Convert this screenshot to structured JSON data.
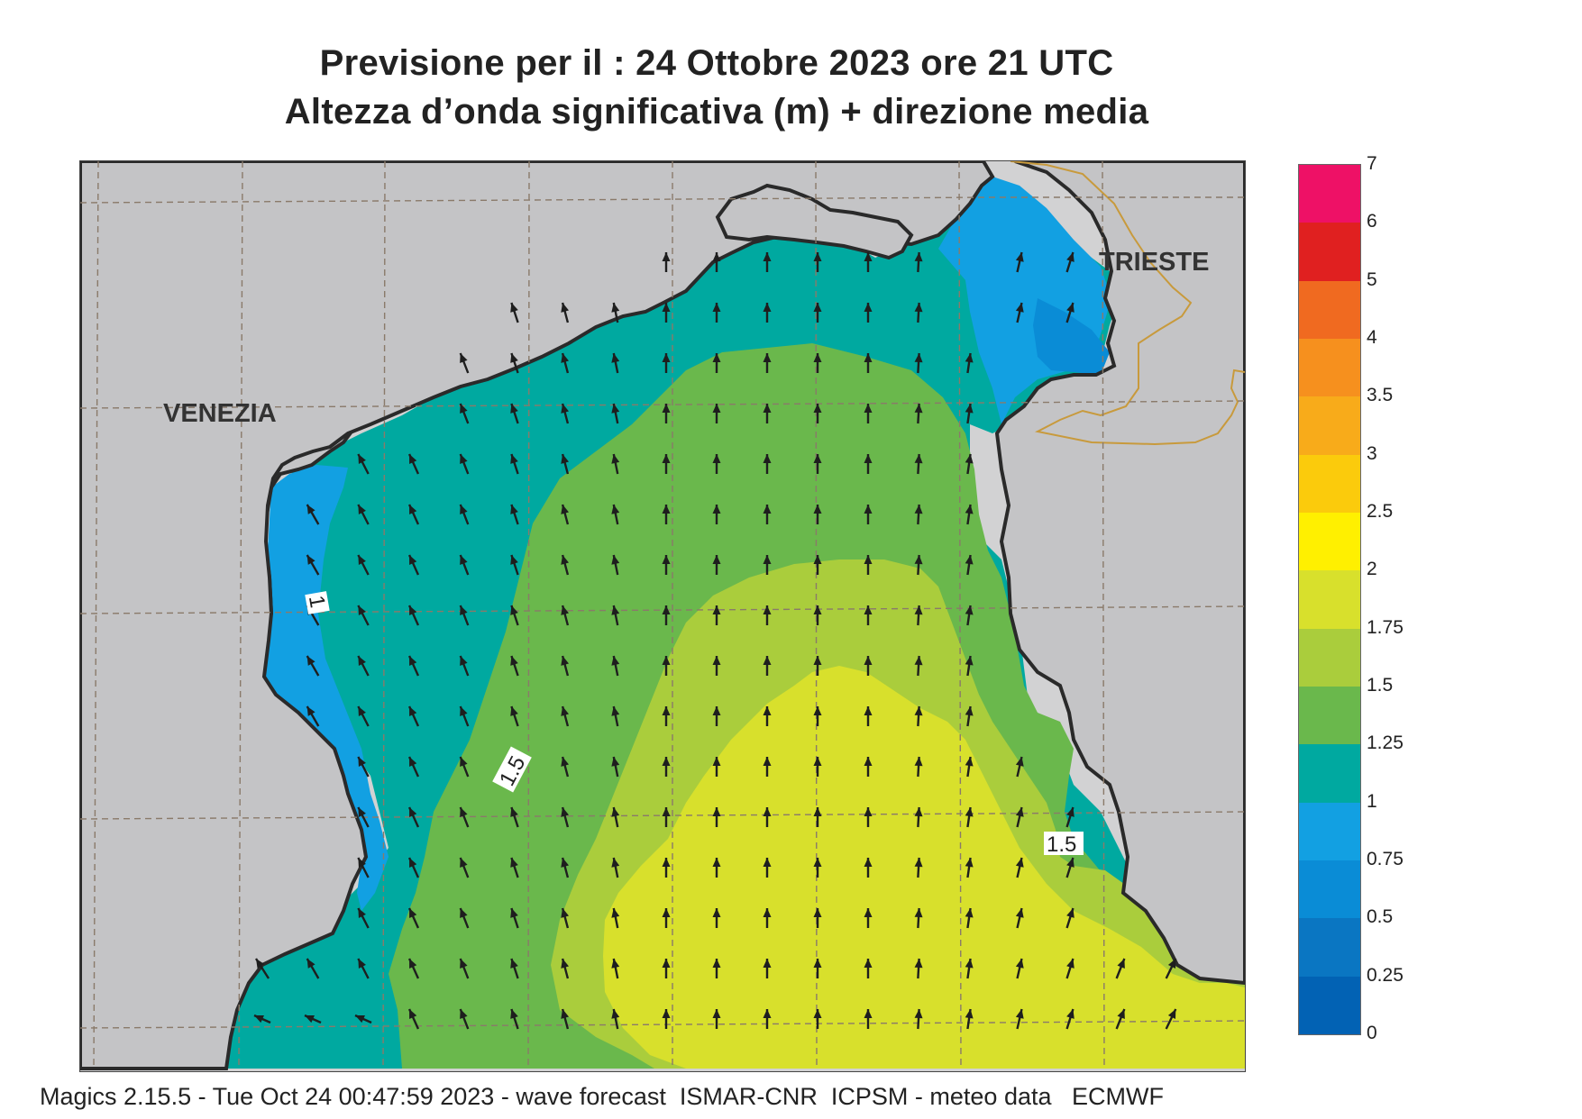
{
  "title": {
    "line1": "Previsione per il  :  24  Ottobre  2023   ore 21 UTC",
    "line2": "Altezza d’onda significativa (m) + direzione media"
  },
  "map": {
    "cities": [
      "VENEZIA",
      "TRIESTE"
    ],
    "contour_labels": [
      "1",
      "1.5",
      "1.5"
    ],
    "arrow_direction": "northward (slightly north-west in the west, north-east near Trieste)"
  },
  "legend": {
    "levels": [
      {
        "label": "7",
        "color": "#ee1166"
      },
      {
        "label": "6",
        "color": "#e02020"
      },
      {
        "label": "5",
        "color": "#f06a20"
      },
      {
        "label": "4",
        "color": "#f6901e"
      },
      {
        "label": "3.5",
        "color": "#f8ab1a"
      },
      {
        "label": "3",
        "color": "#fbcb0c"
      },
      {
        "label": "2.5",
        "color": "#fff000"
      },
      {
        "label": "2",
        "color": "#d8e02c"
      },
      {
        "label": "1.75",
        "color": "#aacd3c"
      },
      {
        "label": "1.5",
        "color": "#6ab84c"
      },
      {
        "label": "1.25",
        "color": "#00a9a0"
      },
      {
        "label": "1",
        "color": "#12a0e2"
      },
      {
        "label": "0.75",
        "color": "#0a8cd6"
      },
      {
        "label": "0.5",
        "color": "#0a76c2"
      },
      {
        "label": "0.25",
        "color": "#0262b4"
      },
      {
        "label": "0",
        "color": ""
      }
    ]
  },
  "footer": "Magics 2.15.5 - Tue Oct 24 00:47:59 2023 - wave forecast  ISMAR-CNR  ICPSM - meteo data   ECMWF"
}
